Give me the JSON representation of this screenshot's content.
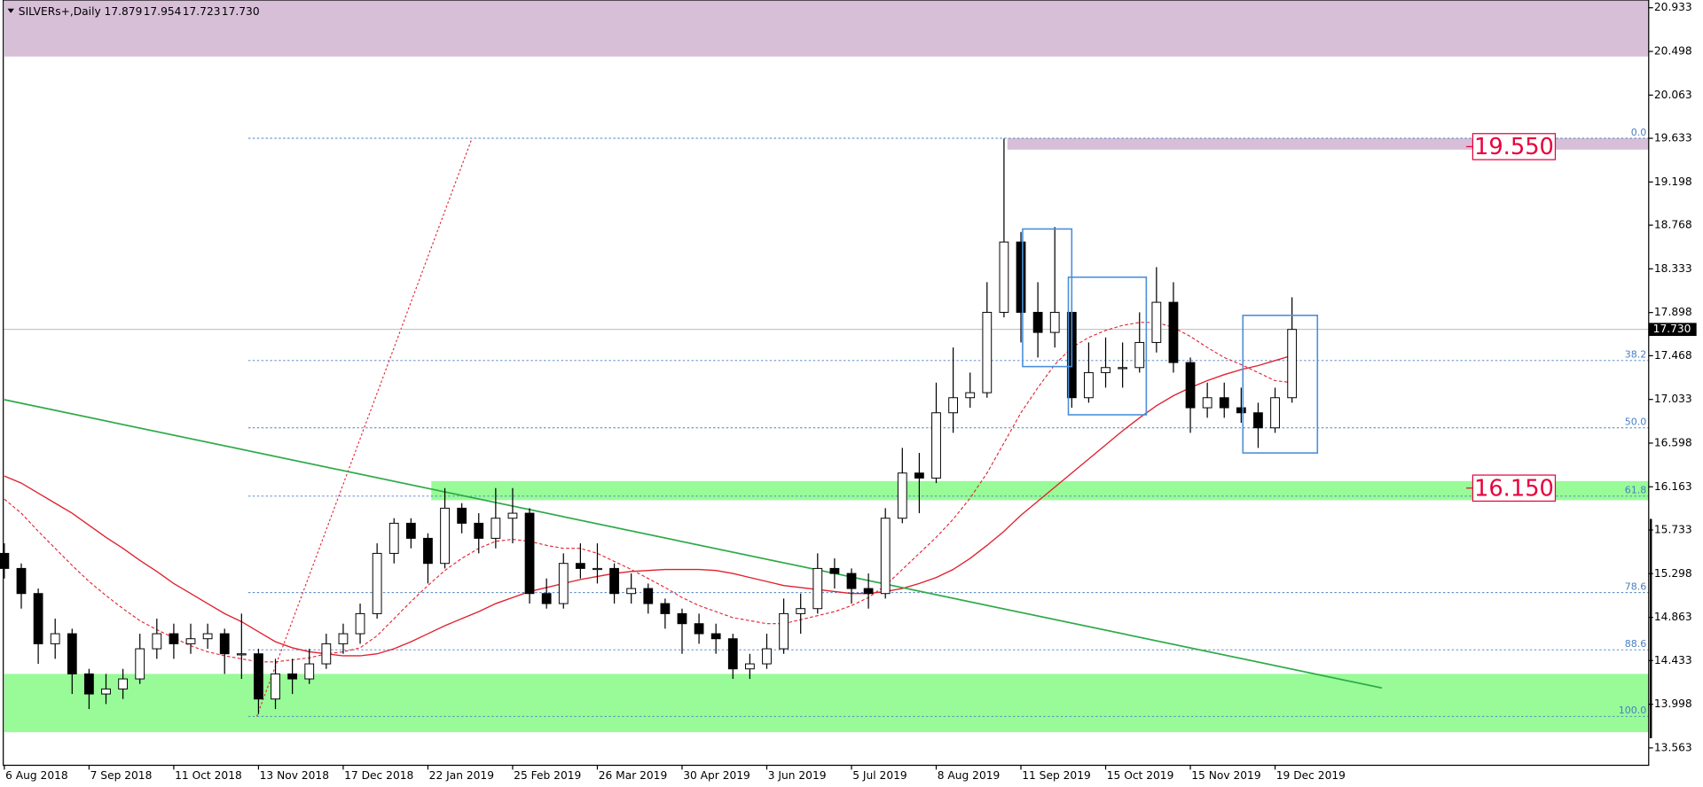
{
  "chart_data": {
    "type": "candlestick",
    "header": {
      "symbol": "SILVERs+,Daily",
      "open": 17.879,
      "high": 17.954,
      "low": 17.723,
      "close": {
        "value": 17.73,
        "label": "17.730"
      }
    },
    "categories": [
      "6 Aug 2018",
      null,
      null,
      null,
      null,
      "7 Sep 2018",
      null,
      null,
      null,
      null,
      "11 Oct 2018",
      null,
      null,
      null,
      null,
      "13 Nov 2018",
      null,
      null,
      null,
      null,
      "17 Dec 2018",
      null,
      null,
      null,
      null,
      "22 Jan 2019",
      null,
      null,
      null,
      null,
      "25 Feb 2019",
      null,
      null,
      null,
      null,
      "26 Mar 2019",
      null,
      null,
      null,
      null,
      "30 Apr 2019",
      null,
      null,
      null,
      null,
      "3 Jun 2019",
      null,
      null,
      null,
      null,
      "5 Jul 2019",
      null,
      null,
      null,
      null,
      "8 Aug 2019",
      null,
      null,
      null,
      null,
      "11 Sep 2019",
      null,
      null,
      null,
      null,
      "15 Oct 2019",
      null,
      null,
      null,
      null,
      "15 Nov 2019",
      null,
      null,
      null,
      null,
      "19 Dec 2019",
      null
    ],
    "ohlc": {
      "open": [
        15.5,
        15.35,
        15.1,
        14.6,
        14.7,
        14.3,
        14.1,
        14.15,
        14.25,
        14.55,
        14.7,
        14.6,
        14.65,
        14.7,
        14.5,
        14.5,
        14.05,
        14.3,
        14.25,
        14.4,
        14.6,
        14.7,
        14.9,
        15.5,
        15.8,
        15.65,
        15.4,
        15.95,
        15.8,
        15.65,
        15.85,
        15.9,
        15.1,
        15.0,
        15.4,
        15.35,
        15.35,
        15.1,
        15.15,
        15.0,
        14.9,
        14.8,
        14.7,
        14.65,
        14.35,
        14.4,
        14.55,
        14.9,
        14.95,
        15.35,
        15.3,
        15.15,
        15.1,
        15.85,
        16.3,
        16.25,
        16.9,
        17.05,
        17.1,
        17.9,
        18.6,
        17.9,
        17.7,
        17.9,
        17.05,
        17.3,
        17.35,
        17.35,
        17.6,
        18.0,
        17.4,
        16.95,
        17.05,
        16.95,
        16.9,
        16.75,
        17.05
      ],
      "high": [
        15.6,
        15.4,
        15.15,
        14.85,
        14.75,
        14.35,
        14.3,
        14.35,
        14.7,
        14.85,
        14.8,
        14.8,
        14.8,
        14.75,
        14.9,
        14.55,
        14.45,
        14.45,
        14.55,
        14.7,
        14.8,
        15.0,
        15.6,
        15.85,
        15.85,
        15.7,
        16.15,
        16.0,
        15.9,
        16.15,
        16.15,
        15.95,
        15.25,
        15.5,
        15.6,
        15.6,
        15.4,
        15.3,
        15.2,
        15.05,
        14.95,
        14.9,
        14.8,
        14.7,
        14.5,
        14.7,
        15.05,
        15.1,
        15.5,
        15.45,
        15.35,
        15.3,
        15.95,
        16.55,
        16.5,
        17.2,
        17.55,
        17.3,
        18.2,
        19.63,
        18.7,
        18.2,
        18.75,
        18.05,
        17.6,
        17.65,
        17.6,
        17.9,
        18.35,
        18.2,
        17.45,
        17.2,
        17.2,
        17.15,
        17.0,
        17.15,
        18.05
      ],
      "low": [
        15.25,
        14.95,
        14.4,
        14.45,
        14.1,
        13.95,
        14.0,
        14.05,
        14.2,
        14.45,
        14.45,
        14.5,
        14.55,
        14.3,
        14.25,
        13.9,
        13.95,
        14.1,
        14.2,
        14.35,
        14.5,
        14.6,
        14.85,
        15.4,
        15.55,
        15.2,
        15.35,
        15.7,
        15.5,
        15.55,
        15.6,
        15.0,
        14.95,
        14.95,
        15.25,
        15.2,
        15.0,
        15.0,
        14.9,
        14.75,
        14.5,
        14.6,
        14.5,
        14.25,
        14.25,
        14.35,
        14.5,
        14.7,
        14.9,
        15.15,
        15.0,
        14.95,
        15.05,
        15.8,
        15.9,
        16.2,
        16.7,
        16.95,
        17.05,
        17.85,
        17.6,
        17.45,
        17.55,
        16.95,
        17.0,
        17.15,
        17.15,
        17.3,
        17.5,
        17.3,
        16.7,
        16.85,
        16.85,
        16.8,
        16.55,
        16.7,
        17.0
      ],
      "close": [
        15.35,
        15.1,
        14.6,
        14.7,
        14.3,
        14.1,
        14.15,
        14.25,
        14.55,
        14.7,
        14.6,
        14.65,
        14.7,
        14.5,
        14.5,
        14.05,
        14.3,
        14.25,
        14.4,
        14.6,
        14.7,
        14.9,
        15.5,
        15.8,
        15.65,
        15.4,
        15.95,
        15.8,
        15.65,
        15.85,
        15.9,
        15.1,
        15.0,
        15.4,
        15.35,
        15.35,
        15.1,
        15.15,
        15.0,
        14.9,
        14.8,
        14.7,
        14.65,
        14.35,
        14.4,
        14.55,
        14.9,
        14.95,
        15.35,
        15.3,
        15.15,
        15.1,
        15.85,
        16.3,
        16.25,
        16.9,
        17.05,
        17.1,
        17.9,
        18.6,
        17.9,
        17.7,
        17.9,
        17.05,
        17.3,
        17.35,
        17.35,
        17.6,
        18.0,
        17.4,
        16.95,
        17.05,
        16.95,
        16.9,
        16.75,
        17.05,
        17.73
      ]
    },
    "moving_averages": [
      {
        "style": "solid",
        "color": "#e0202e",
        "values": [
          16.27,
          16.2,
          16.1,
          16.0,
          15.9,
          15.78,
          15.66,
          15.55,
          15.43,
          15.32,
          15.2,
          15.1,
          15.0,
          14.9,
          14.82,
          14.72,
          14.62,
          14.56,
          14.52,
          14.5,
          14.48,
          14.48,
          14.5,
          14.55,
          14.62,
          14.7,
          14.78,
          14.85,
          14.92,
          15.0,
          15.06,
          15.12,
          15.16,
          15.2,
          15.24,
          15.27,
          15.3,
          15.32,
          15.33,
          15.34,
          15.34,
          15.34,
          15.33,
          15.3,
          15.26,
          15.22,
          15.18,
          15.16,
          15.14,
          15.12,
          15.1,
          15.1,
          15.12,
          15.15,
          15.2,
          15.26,
          15.34,
          15.45,
          15.58,
          15.72,
          15.88,
          16.02,
          16.16,
          16.3,
          16.44,
          16.58,
          16.72,
          16.85,
          16.97,
          17.07,
          17.15,
          17.22,
          17.28,
          17.33,
          17.37,
          17.42,
          17.47
        ]
      },
      {
        "style": "dashed",
        "color": "#e0202e",
        "values": [
          16.04,
          15.9,
          15.72,
          15.55,
          15.38,
          15.22,
          15.08,
          14.95,
          14.83,
          14.74,
          14.66,
          14.58,
          14.52,
          14.48,
          14.45,
          14.42,
          14.42,
          14.44,
          14.46,
          14.5,
          14.52,
          14.56,
          14.68,
          14.85,
          15.02,
          15.18,
          15.33,
          15.45,
          15.55,
          15.62,
          15.64,
          15.62,
          15.58,
          15.55,
          15.55,
          15.5,
          15.42,
          15.34,
          15.25,
          15.16,
          15.06,
          14.98,
          14.92,
          14.86,
          14.83,
          14.8,
          14.8,
          14.84,
          14.88,
          14.92,
          14.98,
          15.06,
          15.18,
          15.34,
          15.5,
          15.66,
          15.84,
          16.05,
          16.3,
          16.6,
          16.9,
          17.15,
          17.38,
          17.55,
          17.65,
          17.72,
          17.77,
          17.8,
          17.8,
          17.75,
          17.66,
          17.55,
          17.45,
          17.38,
          17.3,
          17.22,
          17.2
        ]
      }
    ],
    "ylim": [
      13.39,
      21.01
    ],
    "yticks": [
      20.933,
      20.498,
      20.063,
      19.633,
      19.198,
      18.768,
      18.333,
      17.898,
      17.468,
      17.033,
      16.598,
      16.163,
      15.733,
      15.298,
      14.863,
      14.433,
      13.998,
      13.563
    ],
    "zones": [
      {
        "color": "#d8bfd8",
        "from": 0,
        "low": 20.447,
        "high": 21.01
      },
      {
        "color": "#d8bfd8",
        "from": 59.2,
        "low": 19.52,
        "high": 19.633
      },
      {
        "color": "#98fb98",
        "from": 25.2,
        "low": 16.03,
        "high": 16.22
      },
      {
        "color": "#98fb98",
        "from": 0,
        "low": 13.72,
        "high": 14.3
      }
    ],
    "boxes": [
      {
        "from": 60.1,
        "to": 63.0,
        "low": 17.36,
        "high": 18.73
      },
      {
        "from": 62.8,
        "to": 67.4,
        "low": 16.88,
        "high": 18.25
      },
      {
        "from": 73.1,
        "to": 77.5,
        "low": 16.5,
        "high": 17.87
      }
    ],
    "trendline": {
      "color": "#2eaa4a",
      "from": [
        0,
        17.03
      ],
      "to": [
        81.3,
        14.16
      ]
    },
    "fib_anchor": {
      "from": [
        14.9,
        13.877
      ],
      "to": [
        27.6,
        19.633
      ]
    },
    "fib_levels": [
      {
        "label": "0.0",
        "price": 19.633
      },
      {
        "label": "38.2",
        "price": 17.42
      },
      {
        "label": "50.0",
        "price": 16.75
      },
      {
        "label": "61.8",
        "price": 16.07
      },
      {
        "label": "78.6",
        "price": 15.11
      },
      {
        "label": "88.6",
        "price": 14.54
      },
      {
        "label": "100.0",
        "price": 13.877
      }
    ],
    "fib_start": 14.4,
    "price_labels": [
      {
        "value": 19.55,
        "label": "19.550"
      },
      {
        "value": 16.15,
        "label": "16.150"
      }
    ]
  }
}
